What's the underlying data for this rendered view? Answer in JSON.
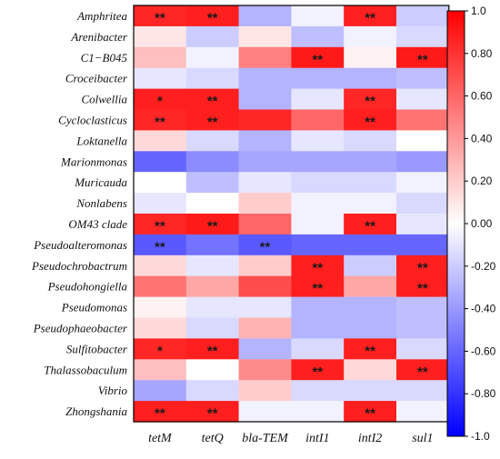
{
  "chart_data": {
    "type": "heatmap",
    "rows": [
      "Amphritea",
      "Arenibacter",
      "C1−B045",
      "Croceibacter",
      "Colwellia",
      "Cycloclasticus",
      "Loktanella",
      "Marionmonas",
      "Muricauda",
      "Nonlabens",
      "OM43 clade",
      "Pseudoalteromonas",
      "Pseudochrobactrum",
      "Pseudohongiella",
      "Pseudomonas",
      "Pseudophaeobacter",
      "Sulfitobacter",
      "Thalassobaculum",
      "Vibrio",
      "Zhongshania"
    ],
    "columns": [
      "tetM",
      "tetQ",
      "bla-TEM",
      "intI1",
      "intI2",
      "sul1"
    ],
    "values": [
      [
        0.85,
        0.88,
        -0.3,
        -0.05,
        0.87,
        -0.2
      ],
      [
        0.1,
        -0.2,
        0.1,
        -0.25,
        -0.05,
        -0.15
      ],
      [
        0.25,
        -0.05,
        0.5,
        0.9,
        0.05,
        0.9
      ],
      [
        -0.1,
        -0.15,
        -0.3,
        -0.3,
        -0.3,
        -0.25
      ],
      [
        0.88,
        0.88,
        -0.3,
        -0.1,
        0.85,
        -0.1
      ],
      [
        0.85,
        0.88,
        0.85,
        0.6,
        0.88,
        0.55
      ],
      [
        0.15,
        -0.15,
        -0.3,
        -0.1,
        -0.15,
        0.0
      ],
      [
        -0.6,
        -0.45,
        -0.35,
        -0.35,
        -0.35,
        -0.4
      ],
      [
        0.0,
        -0.25,
        -0.1,
        -0.15,
        -0.15,
        -0.05
      ],
      [
        -0.1,
        0.0,
        0.2,
        -0.05,
        -0.05,
        -0.15
      ],
      [
        0.85,
        0.9,
        0.6,
        -0.05,
        0.88,
        -0.1
      ],
      [
        -0.65,
        -0.55,
        -0.65,
        -0.6,
        -0.6,
        -0.6
      ],
      [
        0.15,
        -0.1,
        0.2,
        0.88,
        -0.2,
        0.88
      ],
      [
        0.55,
        0.35,
        0.7,
        0.88,
        0.35,
        0.88
      ],
      [
        0.05,
        -0.1,
        -0.1,
        -0.3,
        -0.3,
        -0.25
      ],
      [
        0.15,
        -0.15,
        0.3,
        -0.3,
        -0.3,
        -0.25
      ],
      [
        0.85,
        0.88,
        -0.3,
        -0.15,
        0.88,
        -0.15
      ],
      [
        0.25,
        0.0,
        0.45,
        0.88,
        0.15,
        0.88
      ],
      [
        -0.35,
        -0.15,
        0.2,
        -0.15,
        -0.15,
        -0.15
      ],
      [
        0.88,
        0.88,
        -0.05,
        -0.05,
        0.88,
        -0.05
      ]
    ],
    "significance": [
      [
        "**",
        "**",
        "",
        "",
        "**",
        ""
      ],
      [
        "",
        "",
        "",
        "",
        "",
        ""
      ],
      [
        "",
        "",
        "",
        "**",
        "",
        "**"
      ],
      [
        "",
        "",
        "",
        "",
        "",
        ""
      ],
      [
        "*",
        "**",
        "",
        "",
        "**",
        ""
      ],
      [
        "**",
        "**",
        "",
        "",
        "**",
        ""
      ],
      [
        "",
        "",
        "",
        "",
        "",
        ""
      ],
      [
        "",
        "",
        "",
        "",
        "",
        ""
      ],
      [
        "",
        "",
        "",
        "",
        "",
        ""
      ],
      [
        "",
        "",
        "",
        "",
        "",
        ""
      ],
      [
        "**",
        "**",
        "",
        "",
        "**",
        ""
      ],
      [
        "**",
        "",
        "**",
        "",
        "",
        ""
      ],
      [
        "",
        "",
        "",
        "**",
        "",
        "**"
      ],
      [
        "",
        "",
        "",
        "**",
        "",
        "**"
      ],
      [
        "",
        "",
        "",
        "",
        "",
        ""
      ],
      [
        "",
        "",
        "",
        "",
        "",
        ""
      ],
      [
        "*",
        "**",
        "",
        "",
        "**",
        ""
      ],
      [
        "",
        "",
        "",
        "**",
        "",
        "**"
      ],
      [
        "",
        "",
        "",
        "",
        "",
        ""
      ],
      [
        "**",
        "**",
        "",
        "",
        "**",
        ""
      ]
    ],
    "colorbar": {
      "range": [
        -1.0,
        1.0
      ],
      "ticks": [
        "1.0",
        "0.80",
        "0.60",
        "0.40",
        "0.20",
        "0.00",
        "-0.20",
        "-0.40",
        "-0.60",
        "-0.80",
        "-1.0"
      ],
      "colors": {
        "low": "#0000ff",
        "mid": "#ffffff",
        "high": "#ff0000"
      }
    },
    "title": "",
    "xlabel": "",
    "ylabel": ""
  }
}
